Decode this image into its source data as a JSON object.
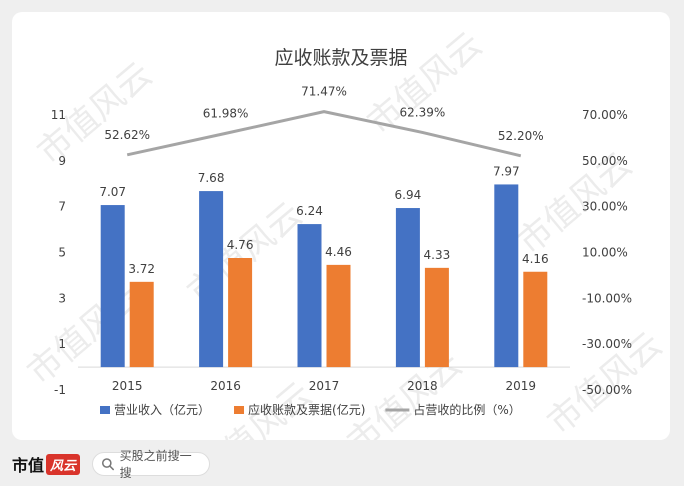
{
  "watermark_text": "市值风云",
  "chart_data": {
    "type": "bar",
    "title": "应收账款及票据",
    "categories": [
      "2015",
      "2016",
      "2017",
      "2018",
      "2019"
    ],
    "series": [
      {
        "name": "营业收入（亿元）",
        "type": "bar",
        "axis": "left",
        "color": "#4472c4",
        "values": [
          7.07,
          7.68,
          6.24,
          6.94,
          7.97
        ],
        "labels": [
          "7.07",
          "7.68",
          "6.24",
          "6.94",
          "7.97"
        ]
      },
      {
        "name": "应收账款及票据(亿元)",
        "type": "bar",
        "axis": "left",
        "color": "#ed7d31",
        "values": [
          3.72,
          4.76,
          4.46,
          4.33,
          4.16
        ],
        "labels": [
          "3.72",
          "4.76",
          "4.46",
          "4.33",
          "4.16"
        ]
      },
      {
        "name": "占营收的比例（%）",
        "type": "line",
        "axis": "right",
        "color": "#a5a5a5",
        "values": [
          52.62,
          61.98,
          71.47,
          62.39,
          52.2
        ],
        "labels": [
          "52.62%",
          "61.98%",
          "71.47%",
          "62.39%",
          "52.20%"
        ]
      }
    ],
    "y_left": {
      "min": -1,
      "max": 11,
      "ticks": [
        "11",
        "9",
        "7",
        "5",
        "3",
        "1",
        "-1"
      ],
      "tick_values": [
        11,
        9,
        7,
        5,
        3,
        1,
        -1
      ]
    },
    "y_right": {
      "min": -50,
      "max": 70,
      "ticks": [
        "70.00%",
        "50.00%",
        "30.00%",
        "10.00%",
        "-10.00%",
        "-30.00%",
        "-50.00%"
      ],
      "tick_values": [
        70,
        50,
        30,
        10,
        -10,
        -30,
        -50
      ]
    },
    "grid": false,
    "legend_position": "bottom"
  },
  "footer": {
    "brand_text": "市值",
    "brand_seal_text": "风云",
    "search_placeholder": "买股之前搜一搜"
  }
}
